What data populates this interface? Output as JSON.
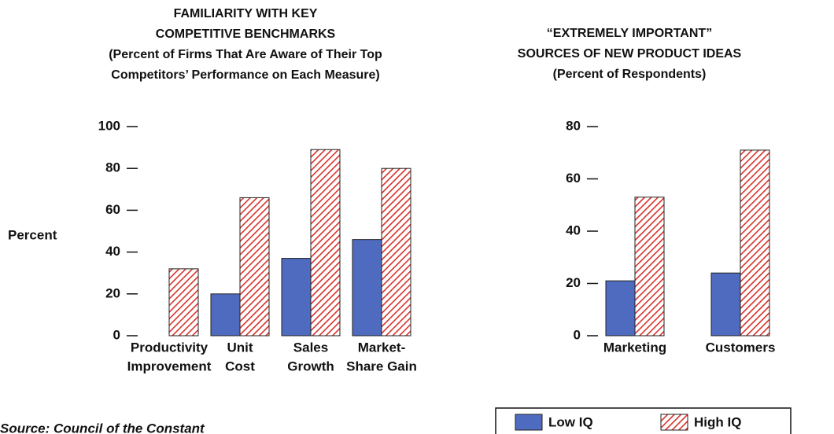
{
  "chart_data": [
    {
      "type": "bar",
      "title": [
        "FAMILIARITY WITH KEY",
        "COMPETITIVE BENCHMARKS"
      ],
      "subtitle": [
        "(Percent of Firms That Are Aware of Their Top",
        "Competitors’ Performance on Each Measure)"
      ],
      "y_label": "Percent",
      "categories": [
        [
          "Productivity",
          "Improvement"
        ],
        [
          "Unit",
          "Cost"
        ],
        [
          "Sales",
          "Growth"
        ],
        [
          "Market-",
          "Share Gain"
        ]
      ],
      "series": [
        {
          "name": "Low IQ",
          "color": "#4f6bbf",
          "values": [
            0,
            20,
            37,
            46
          ]
        },
        {
          "name": "High IQ",
          "color": "#d7322b",
          "hatch": true,
          "values": [
            32,
            66,
            89,
            80
          ]
        }
      ],
      "ylim": [
        0,
        100
      ],
      "yticks": [
        0,
        20,
        40,
        60,
        80,
        100
      ]
    },
    {
      "type": "bar",
      "title": [
        "“EXTREMELY IMPORTANT”",
        "SOURCES OF NEW PRODUCT IDEAS"
      ],
      "subtitle": [
        "(Percent of Respondents)"
      ],
      "categories": [
        [
          "Marketing"
        ],
        [
          "Customers"
        ]
      ],
      "series": [
        {
          "name": "Low IQ",
          "color": "#4f6bbf",
          "values": [
            21,
            24
          ]
        },
        {
          "name": "High IQ",
          "color": "#d7322b",
          "hatch": true,
          "values": [
            53,
            71
          ]
        }
      ],
      "ylim": [
        0,
        80
      ],
      "yticks": [
        0,
        20,
        40,
        60,
        80
      ]
    }
  ],
  "source": "Source: Council of the Constant"
}
